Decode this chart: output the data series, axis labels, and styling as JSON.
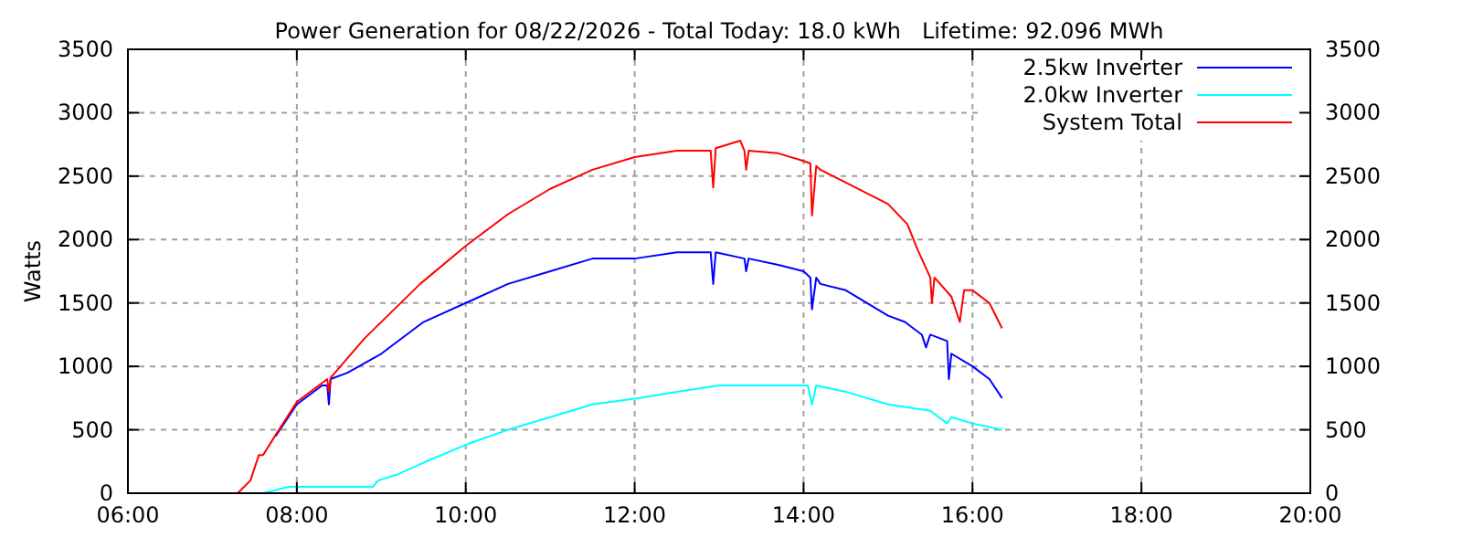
{
  "chart_data": {
    "type": "line",
    "title": "Power Generation for 08/22/2026 - Total Today: 18.0 kWh   Lifetime: 92.096 MWh",
    "ylabel": "Watts",
    "xlim": [
      6,
      20
    ],
    "xticks": [
      {
        "value": 6,
        "label": "06:00"
      },
      {
        "value": 8,
        "label": "08:00"
      },
      {
        "value": 10,
        "label": "10:00"
      },
      {
        "value": 12,
        "label": "12:00"
      },
      {
        "value": 14,
        "label": "14:00"
      },
      {
        "value": 16,
        "label": "16:00"
      },
      {
        "value": 18,
        "label": "18:00"
      },
      {
        "value": 20,
        "label": "20:00"
      }
    ],
    "ylim": [
      0,
      3500
    ],
    "yticks": [
      0,
      500,
      1000,
      1500,
      2000,
      2500,
      3000,
      3500
    ],
    "y2lim": [
      0,
      3500
    ],
    "y2ticks": [
      0,
      500,
      1000,
      1500,
      2000,
      2500,
      3000,
      3500
    ],
    "grid": true,
    "legend": "top right",
    "marker": "none",
    "line_style": "solid",
    "series": [
      {
        "name": "2.5kw Inverter",
        "color": "#0000ff",
        "x": [
          7.75,
          8.0,
          8.3,
          8.36,
          8.38,
          8.4,
          8.6,
          9.0,
          9.5,
          10.0,
          10.5,
          11.0,
          11.5,
          12.0,
          12.5,
          12.9,
          12.93,
          12.96,
          13.3,
          13.32,
          13.35,
          13.7,
          14.0,
          14.08,
          14.1,
          14.15,
          14.2,
          14.5,
          15.0,
          15.2,
          15.4,
          15.45,
          15.5,
          15.7,
          15.72,
          15.75,
          16.0,
          16.2,
          16.35
        ],
        "values": [
          450,
          700,
          850,
          850,
          700,
          900,
          950,
          1100,
          1350,
          1500,
          1650,
          1750,
          1850,
          1850,
          1900,
          1900,
          1650,
          1900,
          1850,
          1750,
          1850,
          1800,
          1750,
          1700,
          1450,
          1700,
          1650,
          1600,
          1400,
          1350,
          1250,
          1150,
          1250,
          1200,
          900,
          1100,
          1000,
          900,
          750
        ]
      },
      {
        "name": "2.0kw Inverter",
        "color": "#00ffff",
        "x": [
          7.3,
          7.6,
          7.9,
          8.0,
          8.5,
          8.8,
          8.9,
          8.96,
          9.2,
          9.53,
          10.07,
          10.5,
          11.0,
          11.5,
          12.06,
          12.5,
          13.0,
          13.5,
          14.0,
          14.05,
          14.1,
          14.15,
          14.5,
          15.0,
          15.5,
          15.6,
          15.7,
          15.75,
          16.0,
          16.35
        ],
        "values": [
          0,
          0,
          50,
          50,
          50,
          50,
          50,
          100,
          150,
          250,
          400,
          500,
          600,
          700,
          750,
          800,
          850,
          850,
          850,
          850,
          700,
          850,
          800,
          700,
          650,
          600,
          550,
          600,
          550,
          500
        ]
      },
      {
        "name": "System Total",
        "color": "#ff0000",
        "x": [
          7.3,
          7.45,
          7.55,
          7.6,
          7.75,
          8.0,
          8.3,
          8.36,
          8.38,
          8.4,
          8.8,
          9.46,
          10.0,
          10.5,
          11.0,
          11.5,
          12.0,
          12.5,
          12.9,
          12.93,
          12.96,
          13.25,
          13.3,
          13.32,
          13.35,
          13.7,
          14.0,
          14.08,
          14.1,
          14.15,
          14.2,
          14.5,
          15.0,
          15.23,
          15.35,
          15.5,
          15.52,
          15.55,
          15.75,
          15.85,
          15.9,
          16.0,
          16.2,
          16.35
        ],
        "values": [
          0,
          100,
          300,
          300,
          460,
          720,
          870,
          900,
          800,
          910,
          1220,
          1650,
          1950,
          2200,
          2400,
          2550,
          2650,
          2700,
          2700,
          2410,
          2720,
          2780,
          2700,
          2550,
          2700,
          2680,
          2620,
          2600,
          2190,
          2580,
          2550,
          2450,
          2280,
          2120,
          1920,
          1700,
          1500,
          1700,
          1550,
          1350,
          1600,
          1600,
          1500,
          1300
        ]
      }
    ]
  }
}
